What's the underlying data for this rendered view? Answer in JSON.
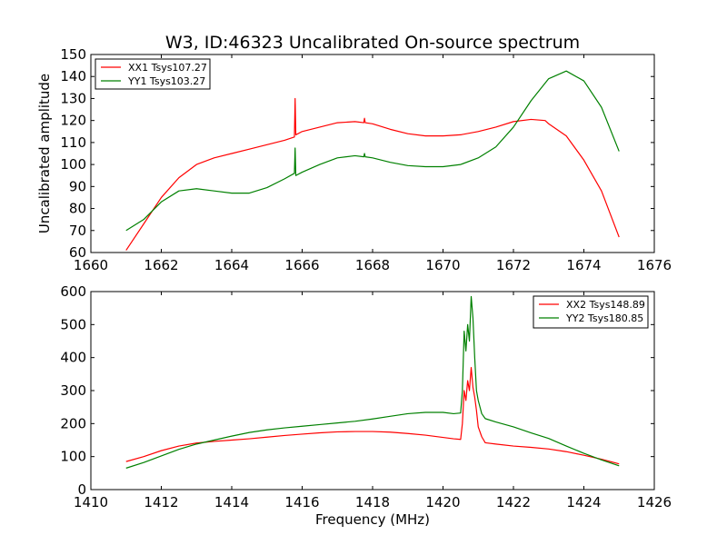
{
  "chart_data": [
    {
      "type": "line",
      "title": "W3, ID:46323 Uncalibrated On-source spectrum",
      "xlabel": "",
      "ylabel": "Uncalibrated amplitude",
      "xlim": [
        1660,
        1676
      ],
      "ylim": [
        60,
        150
      ],
      "xticks": [
        "1660",
        "1662",
        "1664",
        "1666",
        "1668",
        "1670",
        "1672",
        "1674",
        "1676"
      ],
      "yticks": [
        "60",
        "70",
        "80",
        "90",
        "100",
        "110",
        "120",
        "130",
        "140",
        "150"
      ],
      "legend_position": "top-left",
      "series": [
        {
          "name": "XX1 Tsys107.27",
          "color": "#ff0000",
          "x": [
            1661.0,
            1661.5,
            1662.0,
            1662.5,
            1663.0,
            1663.5,
            1664.0,
            1664.5,
            1665.0,
            1665.5,
            1665.78,
            1665.8,
            1665.82,
            1666.0,
            1666.5,
            1667.0,
            1667.5,
            1667.75,
            1667.77,
            1667.79,
            1668.0,
            1668.5,
            1669.0,
            1669.5,
            1670.0,
            1670.5,
            1671.0,
            1671.5,
            1672.0,
            1672.5,
            1672.9,
            1673.0,
            1673.5,
            1674.0,
            1674.5,
            1675.0
          ],
          "y": [
            61,
            73,
            85,
            94,
            100,
            103,
            105,
            107,
            109,
            111,
            112.5,
            130,
            113.5,
            115,
            117,
            119,
            119.5,
            119,
            121,
            119,
            118.5,
            116,
            114,
            113,
            113,
            113.5,
            115,
            117,
            119.5,
            120.5,
            120,
            118.5,
            113,
            102,
            88,
            67
          ]
        },
        {
          "name": "YY1 Tsys103.27",
          "color": "#008000",
          "x": [
            1661.0,
            1661.5,
            1662.0,
            1662.5,
            1663.0,
            1663.5,
            1664.0,
            1664.5,
            1665.0,
            1665.5,
            1665.78,
            1665.8,
            1665.82,
            1666.0,
            1666.5,
            1667.0,
            1667.5,
            1667.75,
            1667.77,
            1667.79,
            1668.0,
            1668.5,
            1669.0,
            1669.5,
            1670.0,
            1670.5,
            1671.0,
            1671.5,
            1672.0,
            1672.5,
            1673.0,
            1673.5,
            1674.0,
            1674.5,
            1675.0
          ],
          "y": [
            70,
            75,
            83,
            88,
            89,
            88,
            87,
            87,
            89.5,
            93.5,
            96,
            107.5,
            95,
            96.5,
            100,
            103,
            104,
            103.5,
            105,
            103.5,
            103,
            101,
            99.5,
            99,
            99,
            100,
            103,
            108,
            117,
            129,
            139,
            142.5,
            138,
            126,
            106
          ]
        }
      ]
    },
    {
      "type": "line",
      "title": "",
      "xlabel": "Frequency (MHz)",
      "ylabel": "",
      "xlim": [
        1410,
        1426
      ],
      "ylim": [
        0,
        600
      ],
      "xticks": [
        "1410",
        "1412",
        "1414",
        "1416",
        "1418",
        "1420",
        "1422",
        "1424",
        "1426"
      ],
      "yticks": [
        "0",
        "100",
        "200",
        "300",
        "400",
        "500",
        "600"
      ],
      "legend_position": "top-right",
      "series": [
        {
          "name": "XX2 Tsys148.89",
          "color": "#ff0000",
          "x": [
            1411.0,
            1411.5,
            1412.0,
            1412.5,
            1413.0,
            1413.5,
            1414.0,
            1414.5,
            1415.0,
            1415.5,
            1416.0,
            1416.5,
            1417.0,
            1417.5,
            1418.0,
            1418.5,
            1419.0,
            1419.5,
            1420.0,
            1420.3,
            1420.5,
            1420.55,
            1420.6,
            1420.65,
            1420.7,
            1420.75,
            1420.8,
            1420.85,
            1420.9,
            1420.95,
            1421.0,
            1421.1,
            1421.2,
            1421.5,
            1422.0,
            1422.5,
            1423.0,
            1423.5,
            1424.0,
            1424.5,
            1425.0
          ],
          "y": [
            85,
            100,
            118,
            132,
            141,
            146,
            150,
            154,
            159,
            164,
            168,
            172,
            175,
            176,
            176,
            174,
            170,
            165,
            158,
            154,
            152,
            200,
            300,
            270,
            330,
            300,
            370,
            310,
            280,
            240,
            190,
            160,
            142,
            138,
            132,
            128,
            123,
            115,
            104,
            92,
            78
          ]
        },
        {
          "name": "YY2 Tsys180.85",
          "color": "#008000",
          "x": [
            1411.0,
            1411.5,
            1412.0,
            1412.5,
            1413.0,
            1413.5,
            1414.0,
            1414.5,
            1415.0,
            1415.5,
            1416.0,
            1416.5,
            1417.0,
            1417.5,
            1418.0,
            1418.5,
            1419.0,
            1419.5,
            1420.0,
            1420.3,
            1420.5,
            1420.55,
            1420.6,
            1420.65,
            1420.7,
            1420.75,
            1420.8,
            1420.85,
            1420.9,
            1420.95,
            1421.0,
            1421.1,
            1421.2,
            1421.5,
            1422.0,
            1422.5,
            1423.0,
            1423.5,
            1424.0,
            1424.5,
            1425.0
          ],
          "y": [
            65,
            82,
            102,
            122,
            138,
            150,
            162,
            173,
            181,
            187,
            192,
            197,
            202,
            207,
            214,
            222,
            230,
            234,
            234,
            230,
            232,
            300,
            480,
            420,
            500,
            450,
            585,
            520,
            400,
            300,
            270,
            230,
            215,
            205,
            190,
            172,
            155,
            132,
            110,
            90,
            72
          ]
        }
      ]
    }
  ]
}
